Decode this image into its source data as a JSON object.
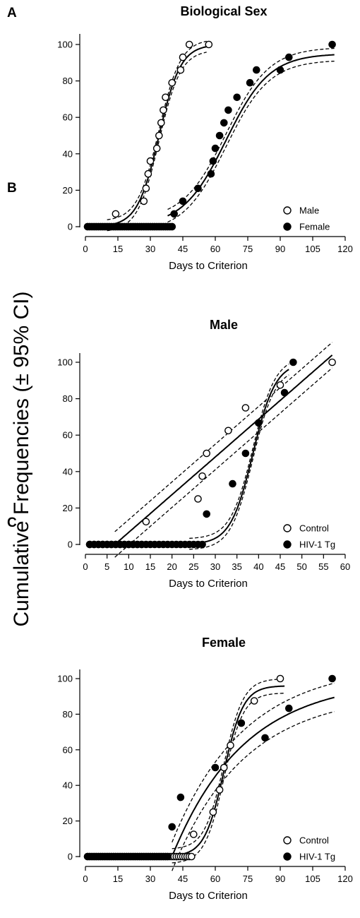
{
  "shared_ylabel": "Cumulative Frequencies (± 95% CI)",
  "chart_data": [
    {
      "type": "scatter",
      "panel": "A",
      "title": "Biological Sex",
      "xlabel": "Days to Criterion",
      "ylabel": "Cumulative Frequencies (± 95% CI)",
      "xlim": [
        0,
        120
      ],
      "ylim": [
        0,
        100
      ],
      "xticks": [
        0,
        15,
        30,
        45,
        60,
        75,
        90,
        105,
        120
      ],
      "yticks": [
        0,
        20,
        40,
        60,
        80,
        100
      ],
      "legend": "bottom-right",
      "series": [
        {
          "name": "Male",
          "marker": "open-circle",
          "x": [
            1,
            2,
            3,
            4,
            5,
            6,
            7,
            8,
            9,
            10,
            11,
            12,
            13,
            14,
            15,
            16,
            17,
            18,
            19,
            20,
            21,
            22,
            23,
            24,
            25,
            26,
            27,
            28,
            29,
            30,
            31,
            32,
            33,
            34,
            35,
            36,
            37,
            38,
            39,
            40,
            14,
            27,
            28,
            29,
            30,
            33,
            34,
            35,
            36,
            37,
            40,
            44,
            45,
            48,
            57
          ],
          "y": [
            0,
            0,
            0,
            0,
            0,
            0,
            0,
            0,
            0,
            0,
            0,
            0,
            0,
            0,
            0,
            0,
            0,
            0,
            0,
            0,
            0,
            0,
            0,
            0,
            0,
            0,
            0,
            0,
            0,
            0,
            0,
            0,
            0,
            0,
            0,
            0,
            0,
            0,
            0,
            0,
            7,
            14,
            21,
            29,
            36,
            43,
            50,
            57,
            64,
            71,
            79,
            86,
            93,
            100,
            100
          ],
          "fit": {
            "model": "logistic",
            "top": 100,
            "x50": 34,
            "slope": 5,
            "x_range": [
              10,
              56
            ],
            "ci_halfwidth": 3
          }
        },
        {
          "name": "Female",
          "marker": "filled-circle",
          "x": [
            1,
            2,
            3,
            4,
            5,
            6,
            7,
            8,
            9,
            10,
            11,
            12,
            13,
            14,
            15,
            16,
            17,
            18,
            19,
            20,
            21,
            22,
            23,
            24,
            25,
            26,
            27,
            28,
            29,
            30,
            31,
            32,
            33,
            34,
            35,
            36,
            37,
            38,
            39,
            40,
            41,
            45,
            52,
            58,
            59,
            60,
            62,
            64,
            66,
            70,
            76,
            79,
            90,
            94,
            114
          ],
          "y": [
            0,
            0,
            0,
            0,
            0,
            0,
            0,
            0,
            0,
            0,
            0,
            0,
            0,
            0,
            0,
            0,
            0,
            0,
            0,
            0,
            0,
            0,
            0,
            0,
            0,
            0,
            0,
            0,
            0,
            0,
            0,
            0,
            0,
            0,
            0,
            0,
            0,
            0,
            0,
            0,
            7,
            14,
            21,
            29,
            36,
            43,
            50,
            57,
            64,
            71,
            79,
            86,
            86,
            93,
            100
          ],
          "fit": {
            "model": "logistic",
            "top": 95,
            "x50": 65,
            "slope": 10,
            "x_range": [
              38,
              115
            ],
            "ci_halfwidth": 3.5
          }
        }
      ]
    },
    {
      "type": "scatter",
      "panel": "B",
      "title": "Male",
      "xlabel": "Days to Criterion",
      "ylabel": "Cumulative Frequencies (± 95% CI)",
      "xlim": [
        0,
        60
      ],
      "ylim": [
        0,
        100
      ],
      "xticks": [
        0,
        5,
        10,
        15,
        20,
        25,
        30,
        35,
        40,
        45,
        50,
        55,
        60
      ],
      "yticks": [
        0,
        20,
        40,
        60,
        80,
        100
      ],
      "legend": "bottom-right",
      "series": [
        {
          "name": "Control",
          "marker": "open-circle",
          "x": [
            1,
            2,
            3,
            4,
            5,
            6,
            7,
            8,
            9,
            10,
            11,
            12,
            13,
            14,
            26,
            27,
            28,
            33,
            37,
            45,
            57
          ],
          "y": [
            0,
            0,
            0,
            0,
            0,
            0,
            0,
            0,
            0,
            0,
            0,
            0,
            0,
            12.5,
            25,
            37.5,
            50,
            62.5,
            75,
            87.5,
            100
          ],
          "fit": {
            "model": "linear",
            "start": 6.8,
            "slope": 2.07,
            "x_range": [
              6.8,
              57
            ],
            "ci_halfwidth": 7
          }
        },
        {
          "name": "HIV-1 Tg",
          "marker": "filled-circle",
          "x": [
            1,
            2,
            3,
            4,
            5,
            6,
            7,
            8,
            9,
            10,
            11,
            12,
            13,
            14,
            15,
            16,
            17,
            18,
            19,
            20,
            21,
            22,
            23,
            24,
            25,
            26,
            27,
            28,
            34,
            37,
            40,
            46,
            48
          ],
          "y": [
            0,
            0,
            0,
            0,
            0,
            0,
            0,
            0,
            0,
            0,
            0,
            0,
            0,
            0,
            0,
            0,
            0,
            0,
            0,
            0,
            0,
            0,
            0,
            0,
            0,
            0,
            0,
            16.7,
            33.3,
            50,
            66.7,
            83.3,
            100
          ],
          "fit": {
            "model": "logistic",
            "top": 100,
            "x50": 38.7,
            "slope": 2.6,
            "x_range": [
              24,
              47
            ],
            "ci_halfwidth": 3
          }
        }
      ]
    },
    {
      "type": "scatter",
      "panel": "C",
      "title": "Female",
      "xlabel": "Days to Criterion",
      "ylabel": "Cumulative Frequencies (± 95% CI)",
      "xlim": [
        0,
        120
      ],
      "ylim": [
        0,
        100
      ],
      "xticks": [
        0,
        15,
        30,
        45,
        60,
        75,
        90,
        105,
        120
      ],
      "yticks": [
        0,
        20,
        40,
        60,
        80,
        100
      ],
      "legend": "bottom-right",
      "series": [
        {
          "name": "Control",
          "marker": "open-circle",
          "x": [
            1,
            2,
            3,
            4,
            5,
            6,
            7,
            8,
            9,
            10,
            11,
            12,
            13,
            14,
            15,
            16,
            17,
            18,
            19,
            20,
            21,
            22,
            23,
            24,
            25,
            26,
            27,
            28,
            29,
            30,
            31,
            32,
            33,
            34,
            35,
            36,
            37,
            38,
            39,
            40,
            41,
            42,
            43,
            44,
            45,
            46,
            47,
            48,
            49,
            50,
            59,
            62,
            64,
            67,
            72,
            78,
            90
          ],
          "y": [
            0,
            0,
            0,
            0,
            0,
            0,
            0,
            0,
            0,
            0,
            0,
            0,
            0,
            0,
            0,
            0,
            0,
            0,
            0,
            0,
            0,
            0,
            0,
            0,
            0,
            0,
            0,
            0,
            0,
            0,
            0,
            0,
            0,
            0,
            0,
            0,
            0,
            0,
            0,
            0,
            0,
            0,
            0,
            0,
            0,
            0,
            0,
            0,
            0,
            12.5,
            25,
            37.5,
            50,
            62.5,
            75,
            87.5,
            100
          ],
          "fit": {
            "model": "logistic",
            "top": 96,
            "x50": 64,
            "slope": 4.5,
            "x_range": [
              40,
              92
            ],
            "ci_halfwidth": 4
          }
        },
        {
          "name": "HIV-1 Tg",
          "marker": "filled-circle",
          "x": [
            1,
            2,
            3,
            4,
            5,
            6,
            7,
            8,
            9,
            10,
            11,
            12,
            13,
            14,
            15,
            16,
            17,
            18,
            19,
            20,
            21,
            22,
            23,
            24,
            25,
            26,
            27,
            28,
            29,
            30,
            31,
            32,
            33,
            34,
            35,
            36,
            37,
            38,
            40,
            44,
            60,
            72,
            83,
            94,
            114
          ],
          "y": [
            0,
            0,
            0,
            0,
            0,
            0,
            0,
            0,
            0,
            0,
            0,
            0,
            0,
            0,
            0,
            0,
            0,
            0,
            0,
            0,
            0,
            0,
            0,
            0,
            0,
            0,
            0,
            0,
            0,
            0,
            0,
            0,
            0,
            0,
            0,
            0,
            0,
            0,
            16.7,
            33.3,
            50,
            75,
            66.7,
            83.3,
            100
          ],
          "fit": {
            "model": "one-phase",
            "top": 100,
            "start": 40,
            "k": 0.03,
            "x_range": [
              40,
              115
            ],
            "ci_halfwidth": 8
          }
        }
      ]
    }
  ]
}
